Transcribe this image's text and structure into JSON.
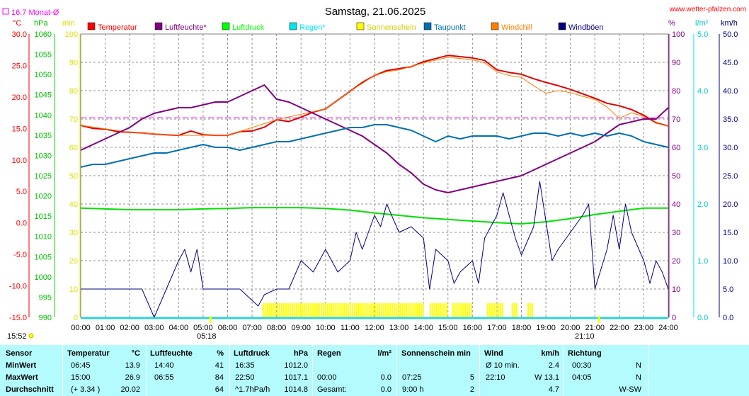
{
  "header": {
    "title": "Samstag, 21.06.2025",
    "site": "www.wetter-pfalzen.com",
    "monthly_avg": "16.7 Monat-Ø"
  },
  "units": {
    "temp": "°C",
    "pressure": "hPa",
    "min": "min",
    "percent": "%",
    "rain": "l/m²",
    "wind": "km/h"
  },
  "chart_data": {
    "type": "line",
    "x_ticks": [
      "00:00",
      "01:00",
      "02:00",
      "03:00",
      "04:00",
      "05:00",
      "06:00",
      "07:00",
      "08:00",
      "09:00",
      "10:00",
      "11:00",
      "12:00",
      "13:00",
      "14:00",
      "15:00",
      "16:00",
      "17:00",
      "18:00",
      "19:00",
      "20:00",
      "21:00",
      "22:00",
      "23:00",
      "24:00"
    ],
    "sunrise": "05:18",
    "sunset": "21:10",
    "current_time": "15:52",
    "y_axes": {
      "temp": {
        "ticks": [
          "30.0",
          "25.0",
          "20.0",
          "15.0",
          "10.0",
          "5.0",
          "0.0",
          "-5.0",
          "-10.0",
          "-15.0"
        ],
        "range": [
          -15,
          30
        ]
      },
      "pressure": {
        "ticks": [
          "1060",
          "1055",
          "1050",
          "1045",
          "1040",
          "1035",
          "1030",
          "1025",
          "1020",
          "1015",
          "1010",
          "1005",
          "1000",
          "995",
          "990"
        ],
        "range": [
          990,
          1060
        ]
      },
      "minutes": {
        "ticks": [
          "100",
          "90",
          "80",
          "70",
          "60",
          "50",
          "40",
          "30",
          "20",
          "10",
          "0"
        ],
        "range": [
          0,
          100
        ]
      },
      "percent": {
        "ticks": [
          "100",
          "90",
          "80",
          "70",
          "60",
          "50",
          "40",
          "30",
          "20",
          "10",
          "0"
        ],
        "range": [
          0,
          100
        ]
      },
      "rain": {
        "ticks": [
          "5.0",
          "4.0",
          "3.0",
          "2.0",
          "1.0",
          "0.0"
        ],
        "range": [
          0,
          5
        ]
      },
      "wind": {
        "ticks": [
          "50.0",
          "45.0",
          "40.0",
          "35.0",
          "30.0",
          "25.0",
          "20.0",
          "15.0",
          "10.0",
          "5.0",
          "0.0"
        ],
        "range": [
          0,
          50
        ]
      }
    },
    "month_avg_line": 16.7,
    "legend": [
      {
        "name": "Temperatur",
        "color": "#ff0000"
      },
      {
        "name": "Luftfeuchte*",
        "color": "#800080"
      },
      {
        "name": "Luftdruck",
        "color": "#00ff00"
      },
      {
        "name": "Regen*",
        "color": "#00e5ee"
      },
      {
        "name": "Sonnenschein",
        "color": "#ffff00"
      },
      {
        "name": "Taupunkt",
        "color": "#0070b0"
      },
      {
        "name": "Windchill",
        "color": "#ff7f00"
      },
      {
        "name": "Windböen",
        "color": "#000080"
      }
    ],
    "series": [
      {
        "name": "Temperatur",
        "axis": "temp",
        "color": "#e00000",
        "x": [
          0,
          0.5,
          1,
          1.5,
          2,
          2.5,
          3,
          3.5,
          4,
          4.5,
          5,
          5.5,
          6,
          6.5,
          7,
          7.5,
          8,
          8.5,
          9,
          9.5,
          10,
          10.5,
          11,
          11.5,
          12,
          12.5,
          13,
          13.5,
          14,
          14.5,
          15,
          15.5,
          16,
          16.5,
          17,
          17.5,
          18,
          18.5,
          19,
          19.5,
          20,
          20.5,
          21,
          21.5,
          22,
          22.5,
          23,
          23.5,
          24
        ],
        "values": [
          15.5,
          15.0,
          14.9,
          14.5,
          14.4,
          14.3,
          14.1,
          14.0,
          13.9,
          14.6,
          14.0,
          13.9,
          13.9,
          14.5,
          14.6,
          15.2,
          16.4,
          16.1,
          16.8,
          17.6,
          18.1,
          19.5,
          20.9,
          22.3,
          23.4,
          24.2,
          24.5,
          24.8,
          25.6,
          26.1,
          26.6,
          26.4,
          26.2,
          25.8,
          24.3,
          23.9,
          23.6,
          22.9,
          22.3,
          21.8,
          21.2,
          20.5,
          19.8,
          19.0,
          18.6,
          18.0,
          17.1,
          15.9,
          15.4
        ]
      },
      {
        "name": "Windchill",
        "axis": "temp",
        "color": "#ff7f00",
        "x": [
          0,
          2,
          4,
          6,
          8,
          10,
          11,
          12,
          12.5,
          13,
          14,
          15,
          16,
          16.5,
          17,
          17.5,
          18,
          18.5,
          19,
          19.5,
          20,
          20.5,
          21,
          21.5,
          22,
          22.5,
          23,
          23.5,
          24
        ],
        "values": [
          15.5,
          14.4,
          13.9,
          13.9,
          16.4,
          18.1,
          20.9,
          23.4,
          24.0,
          24.3,
          25.4,
          26.3,
          25.9,
          25.4,
          24.0,
          23.4,
          23.1,
          21.8,
          20.6,
          21.0,
          20.7,
          20.1,
          19.6,
          18.4,
          16.6,
          17.5,
          16.9,
          15.8,
          15.4
        ]
      },
      {
        "name": "Luftfeuchte*",
        "axis": "percent",
        "color": "#800080",
        "x": [
          0,
          0.5,
          1,
          1.5,
          2,
          2.5,
          3,
          3.5,
          4,
          4.5,
          5,
          5.5,
          6,
          6.5,
          7,
          7.5,
          8,
          8.5,
          9,
          9.5,
          10,
          10.5,
          11,
          11.5,
          12,
          12.5,
          13,
          13.5,
          14,
          14.5,
          15,
          15.5,
          16,
          16.5,
          17,
          17.5,
          18,
          18.5,
          19,
          19.5,
          20,
          20.5,
          21,
          21.5,
          22,
          22.5,
          23,
          23.5,
          24
        ],
        "values": [
          59,
          61,
          63,
          65,
          67,
          70,
          72,
          73,
          74,
          74,
          75,
          76,
          76,
          78,
          80,
          82,
          77,
          76,
          74,
          72,
          70,
          68,
          66,
          64,
          61,
          58,
          54,
          51,
          47,
          45,
          44,
          45,
          46,
          47,
          48,
          49,
          50,
          52,
          54,
          56,
          58,
          60,
          62,
          65,
          68,
          69,
          70,
          70,
          74
        ]
      },
      {
        "name": "Taupunkt",
        "axis": "percent",
        "color": "#0070b0",
        "x": [
          0,
          0.5,
          1,
          1.5,
          2,
          2.5,
          3,
          3.5,
          4,
          4.5,
          5,
          5.5,
          6,
          6.5,
          7,
          7.5,
          8,
          8.5,
          9,
          9.5,
          10,
          10.5,
          11,
          11.5,
          12,
          12.5,
          13,
          13.5,
          14,
          14.5,
          15,
          15.5,
          16,
          16.5,
          17,
          17.5,
          18,
          18.5,
          19,
          19.5,
          20,
          20.5,
          21,
          21.5,
          22,
          22.5,
          23,
          23.5,
          24
        ],
        "values": [
          53,
          54,
          54,
          55,
          56,
          57,
          58,
          58,
          59,
          60,
          61,
          60,
          60,
          59,
          60,
          61,
          62,
          62,
          63,
          64,
          65,
          66,
          67,
          67,
          68,
          68,
          67,
          66,
          64,
          62,
          64,
          63,
          64,
          64,
          64,
          63,
          64,
          65,
          65,
          64,
          65,
          64,
          65,
          64,
          65,
          64,
          62,
          61,
          60
        ]
      },
      {
        "name": "Luftdruck",
        "axis": "pressure",
        "color": "#00e000",
        "x": [
          0,
          1,
          2,
          3,
          4,
          5,
          6,
          7,
          8,
          9,
          10,
          11,
          12,
          13,
          14,
          15,
          16,
          17,
          18,
          19,
          20,
          21,
          22,
          23,
          24
        ],
        "values": [
          1017.0,
          1016.8,
          1016.6,
          1016.6,
          1016.6,
          1016.8,
          1016.9,
          1017.1,
          1017.1,
          1017.1,
          1016.9,
          1016.5,
          1015.8,
          1015.2,
          1014.6,
          1014.2,
          1013.8,
          1013.4,
          1013.1,
          1013.6,
          1014.4,
          1015.4,
          1016.2,
          1017.0,
          1017.0
        ]
      },
      {
        "name": "Windböen",
        "axis": "wind",
        "color": "#000080",
        "x": [
          0,
          0.5,
          1,
          1.5,
          2,
          2.5,
          3,
          3.5,
          4,
          4.25,
          4.5,
          4.75,
          5,
          5.5,
          6,
          6.5,
          7,
          7.25,
          7.5,
          8,
          8.5,
          9,
          9.5,
          10,
          10.5,
          11,
          11.25,
          11.5,
          12,
          12.25,
          12.5,
          13,
          13.5,
          14,
          14.25,
          14.5,
          15,
          15.25,
          15.5,
          16,
          16.25,
          16.5,
          17,
          17.25,
          17.5,
          17.75,
          18,
          18.5,
          18.75,
          19,
          19.25,
          19.5,
          20,
          20.5,
          20.75,
          21,
          21.5,
          21.75,
          22,
          22.25,
          22.5,
          23,
          23.25,
          23.5,
          23.75,
          24
        ],
        "values": [
          5,
          5,
          5,
          5,
          5,
          5,
          0,
          5,
          10,
          12,
          8,
          12,
          5,
          5,
          5,
          5,
          3,
          2,
          4,
          5,
          5,
          10,
          8,
          12,
          8,
          10,
          15,
          12,
          18,
          16,
          20,
          15,
          16,
          14,
          5,
          12,
          10,
          6,
          8,
          10,
          6,
          14,
          18,
          22,
          18,
          14,
          11,
          16,
          24,
          17,
          10,
          12,
          15,
          18,
          20,
          5,
          12,
          18,
          12,
          20,
          15,
          10,
          6,
          10,
          8,
          5
        ]
      }
    ],
    "sunshine_periods": [
      [
        7.42,
        14.0
      ],
      [
        14.25,
        15.0
      ],
      [
        15.17,
        16.0
      ],
      [
        16.6,
        17.25
      ],
      [
        17.6,
        17.8
      ],
      [
        18.25,
        18.45
      ]
    ]
  },
  "stats": {
    "headers": {
      "sensor": "Sensor",
      "temperatur": "Temperatur",
      "temp_unit": "°C",
      "luftfeuchte": "Luftfeuchte",
      "feuchte_unit": "%",
      "luftdruck": "Luftdruck",
      "druck_unit": "hPa",
      "regen": "Regen",
      "regen_unit": "l/m²",
      "sonne": "Sonnenschein min",
      "wind": "Wind",
      "wind_unit": "km/h",
      "richtung": "Richtung"
    },
    "rows": [
      {
        "label": "MinWert",
        "t_time": "06:45",
        "t_val": "13.9",
        "h_time": "14:40",
        "h_val": "41",
        "p_time": "16:35",
        "p_val": "1012.0",
        "r_time": "",
        "r_val": "",
        "s_time": "",
        "s_val": "",
        "w_time": "Ø 10 min.",
        "w_val": "2.4",
        "d_time": "00:30",
        "d_val": "N"
      },
      {
        "label": "MaxWert",
        "t_time": "15:00",
        "t_val": "26.9",
        "h_time": "06:55",
        "h_val": "84",
        "p_time": "22:50",
        "p_val": "1017.1",
        "r_time": "00:00",
        "r_val": "0.0",
        "s_time": "07:25",
        "s_val": "5",
        "w_time": "22:10",
        "w_val": "W 13.1",
        "d_time": "04:05",
        "d_val": "N"
      },
      {
        "label": "Durchschnitt",
        "t_time": "(+ 3.34 )",
        "t_val": "20.02",
        "h_time": "",
        "h_val": "64",
        "p_time": "^1.7hPa/h",
        "p_val": "1014.8",
        "r_time": "Gesamt:",
        "r_val": "0.0",
        "s_time": "9:00 h",
        "s_val": "2",
        "w_time": "",
        "w_val": "4.7",
        "d_time": "",
        "d_val": "W-SW"
      }
    ]
  }
}
